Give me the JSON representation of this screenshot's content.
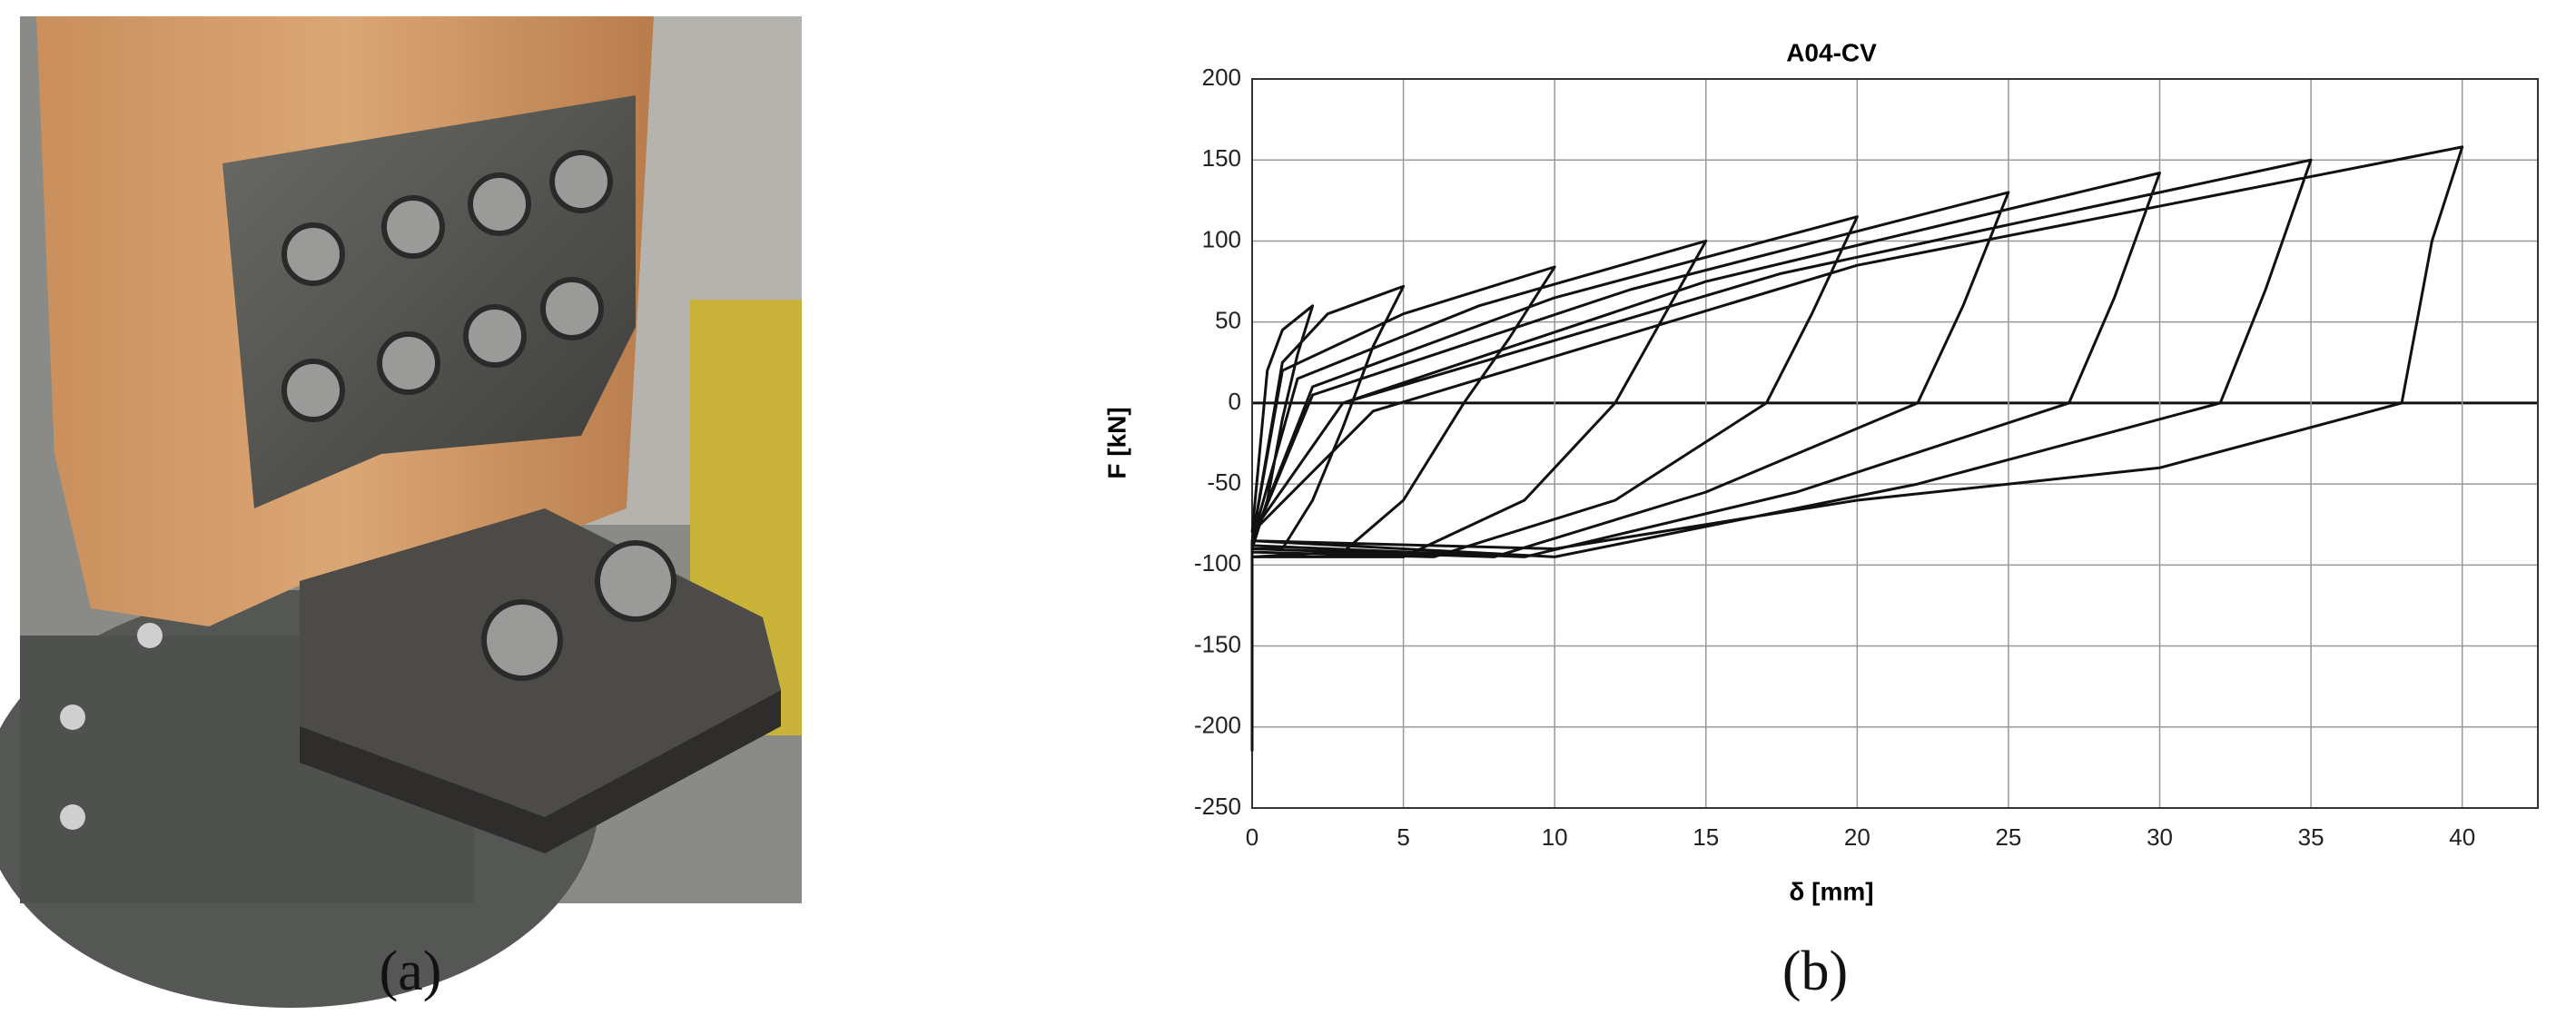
{
  "caption_a": "(a)",
  "caption_b": "(b)",
  "chart_data": {
    "type": "line",
    "title": "A04-CV",
    "x_label": "δ [mm]",
    "y_label": "F [kN]",
    "xlim": [
      0,
      42.5
    ],
    "ylim": [
      -250,
      200
    ],
    "xticks": [
      0,
      5,
      10,
      15,
      20,
      25,
      30,
      35,
      40
    ],
    "yticks": [
      -250,
      -200,
      -150,
      -100,
      -50,
      0,
      50,
      100,
      150,
      200
    ],
    "grid": true,
    "series": [
      {
        "name": "A04-CV",
        "color": "#111111",
        "x": [
          0,
          0.5,
          1,
          2,
          1.5,
          1,
          0.5,
          0,
          0,
          null,
          0,
          1,
          2.5,
          5,
          4,
          3,
          2,
          1,
          0,
          0,
          null,
          0,
          1,
          5,
          10,
          8.5,
          7,
          5,
          3,
          0,
          0,
          null,
          0,
          1.5,
          7.5,
          15,
          13.5,
          12,
          9,
          5,
          0,
          0,
          null,
          0,
          2,
          10,
          20,
          18.5,
          17,
          12,
          6,
          0,
          0,
          null,
          0,
          2,
          12.5,
          25,
          23.5,
          22,
          15,
          8,
          0,
          0,
          null,
          0,
          3,
          15,
          30,
          28.5,
          27,
          18,
          9,
          0,
          0,
          null,
          0,
          3,
          17.5,
          35,
          33.5,
          32,
          22,
          10,
          0,
          0,
          null,
          0,
          4,
          20,
          40,
          39,
          38,
          30,
          20,
          10,
          0
        ],
        "values": [
          -80,
          20,
          45,
          60,
          30,
          -10,
          -60,
          -90,
          -160,
          null,
          -85,
          25,
          55,
          72,
          35,
          -15,
          -60,
          -90,
          -90,
          -190,
          null,
          -85,
          20,
          55,
          84,
          40,
          0,
          -60,
          -92,
          -95,
          -200,
          null,
          -85,
          15,
          60,
          100,
          50,
          0,
          -60,
          -95,
          -95,
          -205,
          null,
          -85,
          10,
          65,
          115,
          55,
          0,
          -60,
          -95,
          -92,
          -210,
          null,
          -85,
          5,
          70,
          130,
          60,
          0,
          -55,
          -95,
          -90,
          -212,
          null,
          -80,
          0,
          75,
          142,
          65,
          0,
          -55,
          -95,
          -88,
          -215,
          null,
          -80,
          0,
          80,
          150,
          70,
          0,
          -50,
          -95,
          -85,
          -215,
          null,
          -80,
          -5,
          85,
          158,
          100,
          0,
          -40,
          -60,
          -90,
          -85
        ]
      }
    ]
  }
}
